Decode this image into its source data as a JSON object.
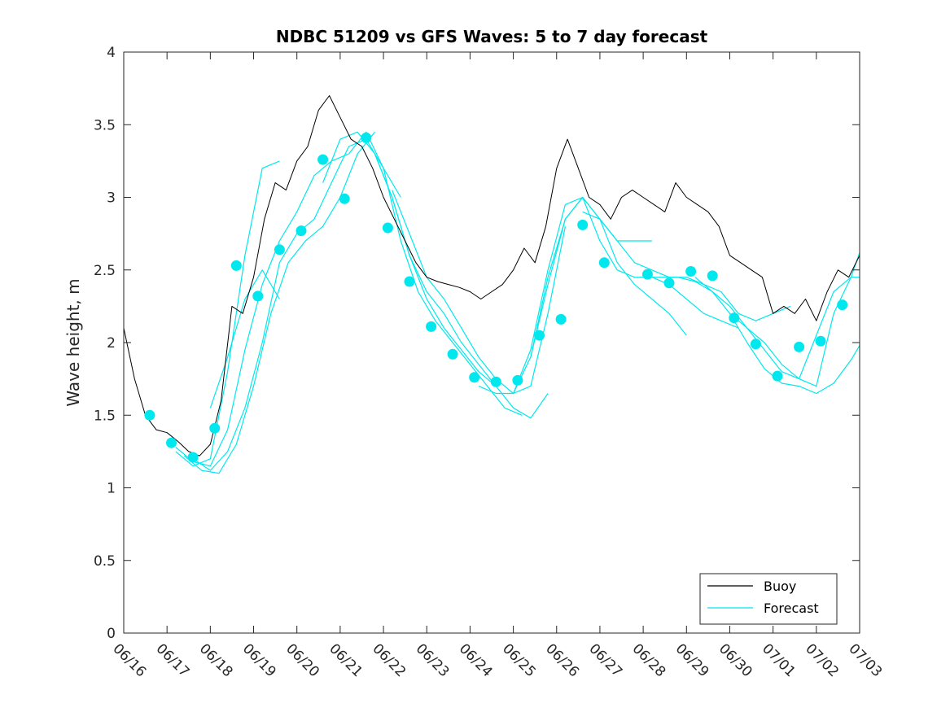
{
  "chart_data": {
    "type": "line",
    "title": "NDBC 51209 vs GFS Waves: 5 to 7 day forecast",
    "xlabel": "",
    "ylabel": "Wave height, m",
    "xlim": [
      "06/16",
      "07/03"
    ],
    "ylim": [
      0,
      4
    ],
    "xtick_labels": [
      "06/16",
      "06/17",
      "06/18",
      "06/19",
      "06/20",
      "06/21",
      "06/22",
      "06/23",
      "06/24",
      "06/25",
      "06/26",
      "06/27",
      "06/28",
      "06/29",
      "06/30",
      "07/01",
      "07/02",
      "07/03"
    ],
    "ytick_labels": [
      "0",
      "0.5",
      "1",
      "1.5",
      "2",
      "2.5",
      "3",
      "3.5",
      "4"
    ],
    "grid": false,
    "legend": {
      "position": "bottom-right",
      "entries": [
        "Buoy",
        "Forecast"
      ]
    },
    "colors": {
      "buoy": "#000000",
      "forecast": "#00e8ee",
      "marker": "#00e8ee"
    },
    "series": [
      {
        "name": "Buoy",
        "x": [
          0.0,
          0.25,
          0.5,
          0.75,
          1.0,
          1.25,
          1.5,
          1.75,
          2.0,
          2.25,
          2.5,
          2.75,
          3.0,
          3.25,
          3.5,
          3.75,
          4.0,
          4.25,
          4.5,
          4.75,
          5.0,
          5.25,
          5.5,
          5.75,
          6.0,
          6.25,
          6.5,
          6.75,
          7.0,
          7.25,
          7.5,
          7.75,
          8.0,
          8.25,
          8.5,
          8.75,
          9.0,
          9.25,
          9.5,
          9.75,
          10.0,
          10.25,
          10.5,
          10.75,
          11.0,
          11.25,
          11.5,
          11.75,
          12.0,
          12.25,
          12.5,
          12.75,
          13.0,
          13.25,
          13.5,
          13.75,
          14.0,
          14.25,
          14.5,
          14.75,
          15.0,
          15.25,
          15.5,
          15.75,
          16.0,
          16.25,
          16.5,
          16.75,
          17.0
        ],
        "y": [
          2.1,
          1.75,
          1.5,
          1.4,
          1.38,
          1.32,
          1.25,
          1.22,
          1.3,
          1.6,
          2.25,
          2.2,
          2.45,
          2.85,
          3.1,
          3.05,
          3.25,
          3.35,
          3.6,
          3.7,
          3.55,
          3.4,
          3.35,
          3.2,
          3.0,
          2.85,
          2.7,
          2.55,
          2.45,
          2.42,
          2.4,
          2.38,
          2.35,
          2.3,
          2.35,
          2.4,
          2.5,
          2.65,
          2.55,
          2.8,
          3.2,
          3.4,
          3.2,
          3.0,
          2.95,
          2.85,
          3.0,
          3.05,
          3.0,
          2.95,
          2.9,
          3.1,
          3.0,
          2.95,
          2.9,
          2.8,
          2.6,
          2.55,
          2.5,
          2.45,
          2.2,
          2.25,
          2.2,
          2.3,
          2.15,
          2.35,
          2.5,
          2.45,
          2.6
        ]
      },
      {
        "name": "Forecast",
        "points": [
          {
            "x": 0.6,
            "y": 1.5
          },
          {
            "x": 1.1,
            "y": 1.31
          },
          {
            "x": 1.6,
            "y": 1.21
          },
          {
            "x": 2.1,
            "y": 1.41
          },
          {
            "x": 2.6,
            "y": 2.53
          },
          {
            "x": 3.1,
            "y": 2.32
          },
          {
            "x": 3.6,
            "y": 2.64
          },
          {
            "x": 4.1,
            "y": 2.77
          },
          {
            "x": 4.6,
            "y": 3.26
          },
          {
            "x": 5.1,
            "y": 2.99
          },
          {
            "x": 5.6,
            "y": 3.41
          },
          {
            "x": 6.1,
            "y": 2.79
          },
          {
            "x": 6.6,
            "y": 2.42
          },
          {
            "x": 7.1,
            "y": 2.11
          },
          {
            "x": 7.6,
            "y": 1.92
          },
          {
            "x": 8.1,
            "y": 1.76
          },
          {
            "x": 8.6,
            "y": 1.73
          },
          {
            "x": 9.1,
            "y": 1.74
          },
          {
            "x": 9.6,
            "y": 2.05
          },
          {
            "x": 10.1,
            "y": 2.16
          },
          {
            "x": 10.6,
            "y": 2.81
          },
          {
            "x": 11.1,
            "y": 2.55
          },
          {
            "x": 12.1,
            "y": 2.47
          },
          {
            "x": 12.6,
            "y": 2.41
          },
          {
            "x": 13.1,
            "y": 2.49
          },
          {
            "x": 13.6,
            "y": 2.46
          },
          {
            "x": 14.1,
            "y": 2.17
          },
          {
            "x": 14.6,
            "y": 1.99
          },
          {
            "x": 15.1,
            "y": 1.77
          },
          {
            "x": 15.6,
            "y": 1.97
          },
          {
            "x": 16.1,
            "y": 2.01
          },
          {
            "x": 16.6,
            "y": 2.26
          }
        ],
        "runs": [
          {
            "x": [
              1.2,
              1.6,
              2.0,
              2.4,
              2.8,
              3.2,
              3.6
            ],
            "y": [
              1.25,
              1.15,
              1.2,
              1.8,
              2.6,
              3.2,
              3.25
            ]
          },
          {
            "x": [
              1.2,
              1.6,
              2.0,
              2.4,
              2.8,
              3.2,
              3.6,
              4.0,
              4.4,
              4.8,
              5.2
            ],
            "y": [
              1.28,
              1.18,
              1.15,
              1.4,
              1.95,
              2.4,
              2.7,
              2.9,
              3.15,
              3.25,
              3.3
            ]
          },
          {
            "x": [
              1.4,
              1.8,
              2.2,
              2.6,
              3.0,
              3.4,
              3.8,
              4.2,
              4.6,
              5.0,
              5.4,
              5.8
            ],
            "y": [
              1.22,
              1.12,
              1.1,
              1.3,
              1.7,
              2.2,
              2.55,
              2.7,
              2.8,
              3.0,
              3.3,
              3.45
            ]
          },
          {
            "x": [
              1.6,
              2.0,
              2.4,
              2.8,
              3.2,
              3.6,
              4.0,
              4.4,
              4.8,
              5.2,
              5.6,
              6.0,
              6.4
            ],
            "y": [
              1.2,
              1.12,
              1.25,
              1.55,
              2.0,
              2.55,
              2.75,
              2.85,
              3.1,
              3.35,
              3.4,
              3.2,
              3.0
            ]
          },
          {
            "x": [
              2.0,
              2.4,
              2.8,
              3.2,
              3.6
            ],
            "y": [
              1.55,
              1.9,
              2.3,
              2.5,
              2.3
            ]
          },
          {
            "x": [
              4.6,
              5.0,
              5.4,
              5.8,
              6.2,
              6.6,
              7.0,
              7.4,
              7.8,
              8.2,
              8.6
            ],
            "y": [
              3.1,
              3.4,
              3.45,
              3.3,
              3.0,
              2.6,
              2.3,
              2.1,
              1.95,
              1.8,
              1.7
            ]
          },
          {
            "x": [
              5.2,
              5.6,
              6.0,
              6.4,
              6.8,
              7.2,
              7.6,
              8.0,
              8.4,
              8.8,
              9.2
            ],
            "y": [
              3.3,
              3.45,
              3.2,
              2.7,
              2.35,
              2.15,
              2.0,
              1.85,
              1.7,
              1.55,
              1.5
            ]
          },
          {
            "x": [
              5.8,
              6.2,
              6.6,
              7.0,
              7.4,
              7.8,
              8.2,
              8.6,
              9.0,
              9.4,
              9.8
            ],
            "y": [
              3.3,
              3.0,
              2.6,
              2.35,
              2.2,
              2.0,
              1.85,
              1.7,
              1.55,
              1.48,
              1.65
            ]
          },
          {
            "x": [
              6.2,
              6.6,
              7.0,
              7.4,
              7.8,
              8.2,
              8.6,
              9.0,
              9.4,
              9.8,
              10.2
            ],
            "y": [
              3.05,
              2.75,
              2.45,
              2.3,
              2.1,
              1.9,
              1.75,
              1.65,
              1.7,
              2.2,
              2.8
            ]
          },
          {
            "x": [
              8.2,
              8.6,
              9.0,
              9.4,
              9.8,
              10.2,
              10.6,
              11.0,
              11.4,
              11.8,
              12.2
            ],
            "y": [
              1.7,
              1.65,
              1.65,
              1.9,
              2.45,
              2.85,
              3.0,
              2.85,
              2.7,
              2.7,
              2.7
            ]
          },
          {
            "x": [
              9.0,
              9.4,
              9.8,
              10.2,
              10.6,
              11.0,
              11.4,
              11.8,
              12.2,
              12.6,
              13.0
            ],
            "y": [
              1.65,
              1.95,
              2.5,
              2.95,
              3.0,
              2.85,
              2.55,
              2.4,
              2.3,
              2.2,
              2.05
            ]
          },
          {
            "x": [
              9.4,
              9.8,
              10.2,
              10.6,
              11.0,
              11.4,
              11.8,
              12.2,
              12.6,
              13.0,
              13.4,
              13.8,
              14.2
            ],
            "y": [
              1.9,
              2.4,
              2.85,
              3.0,
              2.7,
              2.5,
              2.45,
              2.45,
              2.4,
              2.3,
              2.2,
              2.15,
              2.1
            ]
          },
          {
            "x": [
              10.6,
              11.0,
              11.4,
              11.8,
              12.2,
              12.6,
              13.0,
              13.4,
              13.8,
              14.2,
              14.6,
              15.0,
              15.4
            ],
            "y": [
              2.9,
              2.85,
              2.7,
              2.55,
              2.5,
              2.45,
              2.45,
              2.4,
              2.35,
              2.2,
              2.15,
              2.2,
              2.25
            ]
          },
          {
            "x": [
              12.0,
              12.4,
              12.8,
              13.2,
              13.6,
              14.0,
              14.4,
              14.8,
              15.2,
              15.6,
              16.0,
              16.4,
              16.8,
              17.0
            ],
            "y": [
              2.45,
              2.45,
              2.45,
              2.42,
              2.35,
              2.2,
              2.0,
              1.82,
              1.72,
              1.7,
              1.65,
              1.72,
              1.88,
              1.98
            ]
          },
          {
            "x": [
              13.2,
              13.6,
              14.0,
              14.4,
              14.8,
              15.2,
              15.6,
              16.0,
              16.4,
              16.8,
              17.0
            ],
            "y": [
              2.45,
              2.35,
              2.25,
              2.1,
              1.95,
              1.8,
              1.75,
              1.7,
              2.2,
              2.45,
              2.45
            ]
          },
          {
            "x": [
              14.0,
              14.4,
              14.8,
              15.2,
              15.6,
              16.0,
              16.4,
              16.8,
              17.0
            ],
            "y": [
              2.2,
              2.1,
              2.0,
              1.85,
              1.75,
              2.05,
              2.35,
              2.45,
              2.62
            ]
          }
        ]
      }
    ]
  }
}
